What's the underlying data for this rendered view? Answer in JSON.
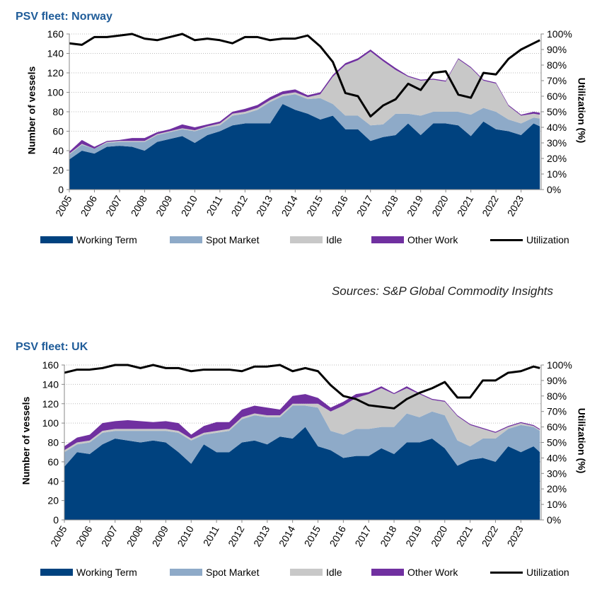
{
  "source_note": "Sources: S&P Global Commodity Insights",
  "legend": {
    "working": "Working Term",
    "spot": "Spot Market",
    "idle": "Idle",
    "other": "Other Work",
    "utilization": "Utilization"
  },
  "colors": {
    "working": "#00427F",
    "spot": "#8EAAC8",
    "idle": "#C8C8C8",
    "other": "#7030A0",
    "utilization": "#000000",
    "title": "#1F5C99"
  },
  "chart_data": [
    {
      "type": "area",
      "title": "PSV fleet: Norway",
      "ylabel": "Number of vessels",
      "y2label": "Utilization (%)",
      "ylim": [
        0,
        160
      ],
      "y2lim": [
        0,
        100
      ],
      "y_ticks": [
        0,
        20,
        40,
        60,
        80,
        100,
        120,
        140,
        160
      ],
      "y2_tick_labels": [
        "0%",
        "10%",
        "20%",
        "30%",
        "40%",
        "50%",
        "60%",
        "70%",
        "80%",
        "90%",
        "100%"
      ],
      "x_tick_labels": [
        "2005",
        "2006",
        "2007",
        "2008",
        "2009",
        "2010",
        "2011",
        "2012",
        "2013",
        "2014",
        "2015",
        "2016",
        "2017",
        "2018",
        "2019",
        "2020",
        "2021",
        "2022",
        "2023"
      ],
      "grid": true,
      "legend_position": "bottom",
      "x": [
        2005.0,
        2005.5,
        2006.0,
        2006.5,
        2007.0,
        2007.5,
        2008.0,
        2008.5,
        2009.0,
        2009.5,
        2010.0,
        2010.5,
        2011.0,
        2011.5,
        2012.0,
        2012.5,
        2013.0,
        2013.5,
        2014.0,
        2014.5,
        2015.0,
        2015.5,
        2016.0,
        2016.5,
        2017.0,
        2017.5,
        2018.0,
        2018.5,
        2019.0,
        2019.5,
        2020.0,
        2020.5,
        2021.0,
        2021.5,
        2022.0,
        2022.5,
        2023.0,
        2023.5,
        2023.75
      ],
      "series": [
        {
          "name": "Working Term",
          "values": [
            31,
            40,
            37,
            44,
            45,
            44,
            40,
            49,
            52,
            55,
            48,
            56,
            60,
            66,
            68,
            68,
            68,
            88,
            82,
            78,
            72,
            76,
            62,
            62,
            50,
            54,
            56,
            68,
            56,
            68,
            68,
            66,
            55,
            70,
            62,
            60,
            56,
            68,
            65
          ]
        },
        {
          "name": "Spot Market",
          "values": [
            5,
            6,
            5,
            4,
            4,
            5,
            9,
            7,
            7,
            7,
            12,
            8,
            6,
            10,
            10,
            14,
            22,
            8,
            16,
            15,
            22,
            12,
            14,
            14,
            16,
            13,
            22,
            10,
            20,
            12,
            12,
            14,
            22,
            14,
            18,
            12,
            12,
            6,
            8
          ]
        },
        {
          "name": "Idle",
          "values": [
            1,
            1,
            0,
            1,
            1,
            1,
            1,
            1,
            1,
            1,
            1,
            1,
            2,
            2,
            2,
            2,
            2,
            2,
            2,
            2,
            4,
            28,
            52,
            57,
            76,
            65,
            45,
            38,
            36,
            33,
            31,
            54,
            48,
            28,
            29,
            14,
            8,
            4,
            4
          ]
        },
        {
          "name": "Other Work",
          "values": [
            2,
            4,
            2,
            1,
            1,
            3,
            3,
            2,
            2,
            4,
            3,
            2,
            2,
            2,
            3,
            3,
            3,
            3,
            3,
            2,
            2,
            2,
            2,
            2,
            2,
            2,
            2,
            1,
            1,
            1,
            1,
            1,
            1,
            1,
            1,
            1,
            1,
            2,
            2
          ]
        },
        {
          "name": "Utilization",
          "axis": "right",
          "values": [
            94,
            93,
            98,
            98,
            99,
            100,
            97,
            96,
            98,
            100,
            96,
            97,
            96,
            94,
            98,
            98,
            96,
            97,
            97,
            99,
            92,
            82,
            62,
            60,
            47,
            54,
            58,
            68,
            64,
            75,
            76,
            61,
            59,
            75,
            74,
            84,
            90,
            94,
            96
          ]
        }
      ]
    },
    {
      "type": "area",
      "title": "PSV fleet: UK",
      "ylabel": "Number of vessels",
      "y2label": "Utilization (%)",
      "ylim": [
        0,
        160
      ],
      "y2lim": [
        0,
        100
      ],
      "y_ticks": [
        0,
        20,
        40,
        60,
        80,
        100,
        120,
        140,
        160
      ],
      "y2_tick_labels": [
        "0%",
        "10%",
        "20%",
        "30%",
        "40%",
        "50%",
        "60%",
        "70%",
        "80%",
        "90%",
        "100%"
      ],
      "x_tick_labels": [
        "2005",
        "2006",
        "2007",
        "2008",
        "2009",
        "2010",
        "2011",
        "2012",
        "2013",
        "2014",
        "2015",
        "2016",
        "2017",
        "2018",
        "2019",
        "2020",
        "2021",
        "2022",
        "2023"
      ],
      "grid": true,
      "legend_position": "bottom",
      "x": [
        2005.0,
        2005.5,
        2006.0,
        2006.5,
        2007.0,
        2007.5,
        2008.0,
        2008.5,
        2009.0,
        2009.5,
        2010.0,
        2010.5,
        2011.0,
        2011.5,
        2012.0,
        2012.5,
        2013.0,
        2013.5,
        2014.0,
        2014.5,
        2015.0,
        2015.5,
        2016.0,
        2016.5,
        2017.0,
        2017.5,
        2018.0,
        2018.5,
        2019.0,
        2019.5,
        2020.0,
        2020.5,
        2021.0,
        2021.5,
        2022.0,
        2022.5,
        2023.0,
        2023.5,
        2023.75
      ],
      "series": [
        {
          "name": "Working Term",
          "values": [
            55,
            70,
            68,
            78,
            84,
            82,
            80,
            82,
            80,
            70,
            58,
            78,
            70,
            70,
            80,
            82,
            78,
            86,
            84,
            96,
            76,
            72,
            64,
            66,
            66,
            74,
            68,
            80,
            80,
            84,
            74,
            56,
            62,
            64,
            60,
            76,
            70,
            76,
            70
          ]
        },
        {
          "name": "Spot Market",
          "values": [
            15,
            8,
            12,
            12,
            8,
            10,
            12,
            10,
            12,
            20,
            24,
            10,
            20,
            22,
            24,
            26,
            28,
            20,
            34,
            22,
            40,
            20,
            24,
            28,
            28,
            22,
            28,
            30,
            26,
            28,
            34,
            26,
            14,
            20,
            24,
            18,
            28,
            20,
            22
          ]
        },
        {
          "name": "Idle",
          "values": [
            2,
            2,
            2,
            2,
            2,
            2,
            2,
            2,
            2,
            2,
            2,
            2,
            2,
            2,
            2,
            2,
            2,
            2,
            2,
            2,
            4,
            20,
            30,
            32,
            36,
            40,
            34,
            26,
            24,
            12,
            14,
            25,
            22,
            10,
            6,
            2,
            2,
            1,
            1
          ]
        },
        {
          "name": "Other Work",
          "values": [
            4,
            5,
            6,
            8,
            8,
            9,
            8,
            7,
            8,
            8,
            4,
            7,
            9,
            7,
            8,
            8,
            8,
            6,
            8,
            10,
            6,
            4,
            4,
            4,
            2,
            2,
            1,
            2,
            1,
            1,
            1,
            1,
            1,
            1,
            1,
            1,
            1,
            1,
            1
          ]
        },
        {
          "name": "Utilization",
          "axis": "right",
          "values": [
            95,
            97,
            97,
            98,
            100,
            100,
            98,
            100,
            98,
            98,
            96,
            97,
            97,
            97,
            96,
            99,
            99,
            100,
            96,
            98,
            96,
            87,
            80,
            78,
            74,
            73,
            72,
            78,
            82,
            85,
            89,
            79,
            79,
            90,
            90,
            95,
            96,
            99,
            98
          ]
        }
      ]
    }
  ]
}
